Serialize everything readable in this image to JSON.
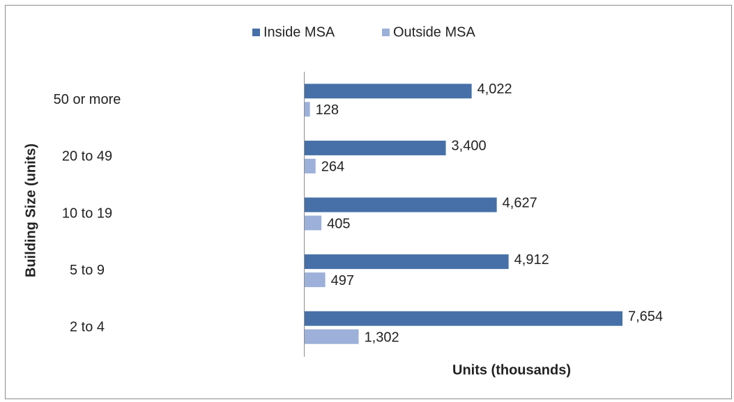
{
  "chart_data": {
    "type": "hbar",
    "y_axis_label": "Building Size (units)",
    "x_axis_label": "Units (thousands)",
    "categories": [
      "50 or more",
      "20 to 49",
      "10 to 19",
      "5 to 9",
      "2 to 4"
    ],
    "series": [
      {
        "name": "Inside MSA",
        "color": "#4670a7",
        "values": [
          4022,
          3400,
          4627,
          4912,
          7654
        ],
        "value_labels": [
          "4,022",
          "3,400",
          "4,627",
          "4,912",
          "7,654"
        ]
      },
      {
        "name": "Outside MSA",
        "color": "#9cb0d9",
        "values": [
          128,
          264,
          405,
          497,
          1302
        ],
        "value_labels": [
          "128",
          "264",
          "405",
          "497",
          "1,302"
        ]
      }
    ],
    "legend": "top"
  }
}
